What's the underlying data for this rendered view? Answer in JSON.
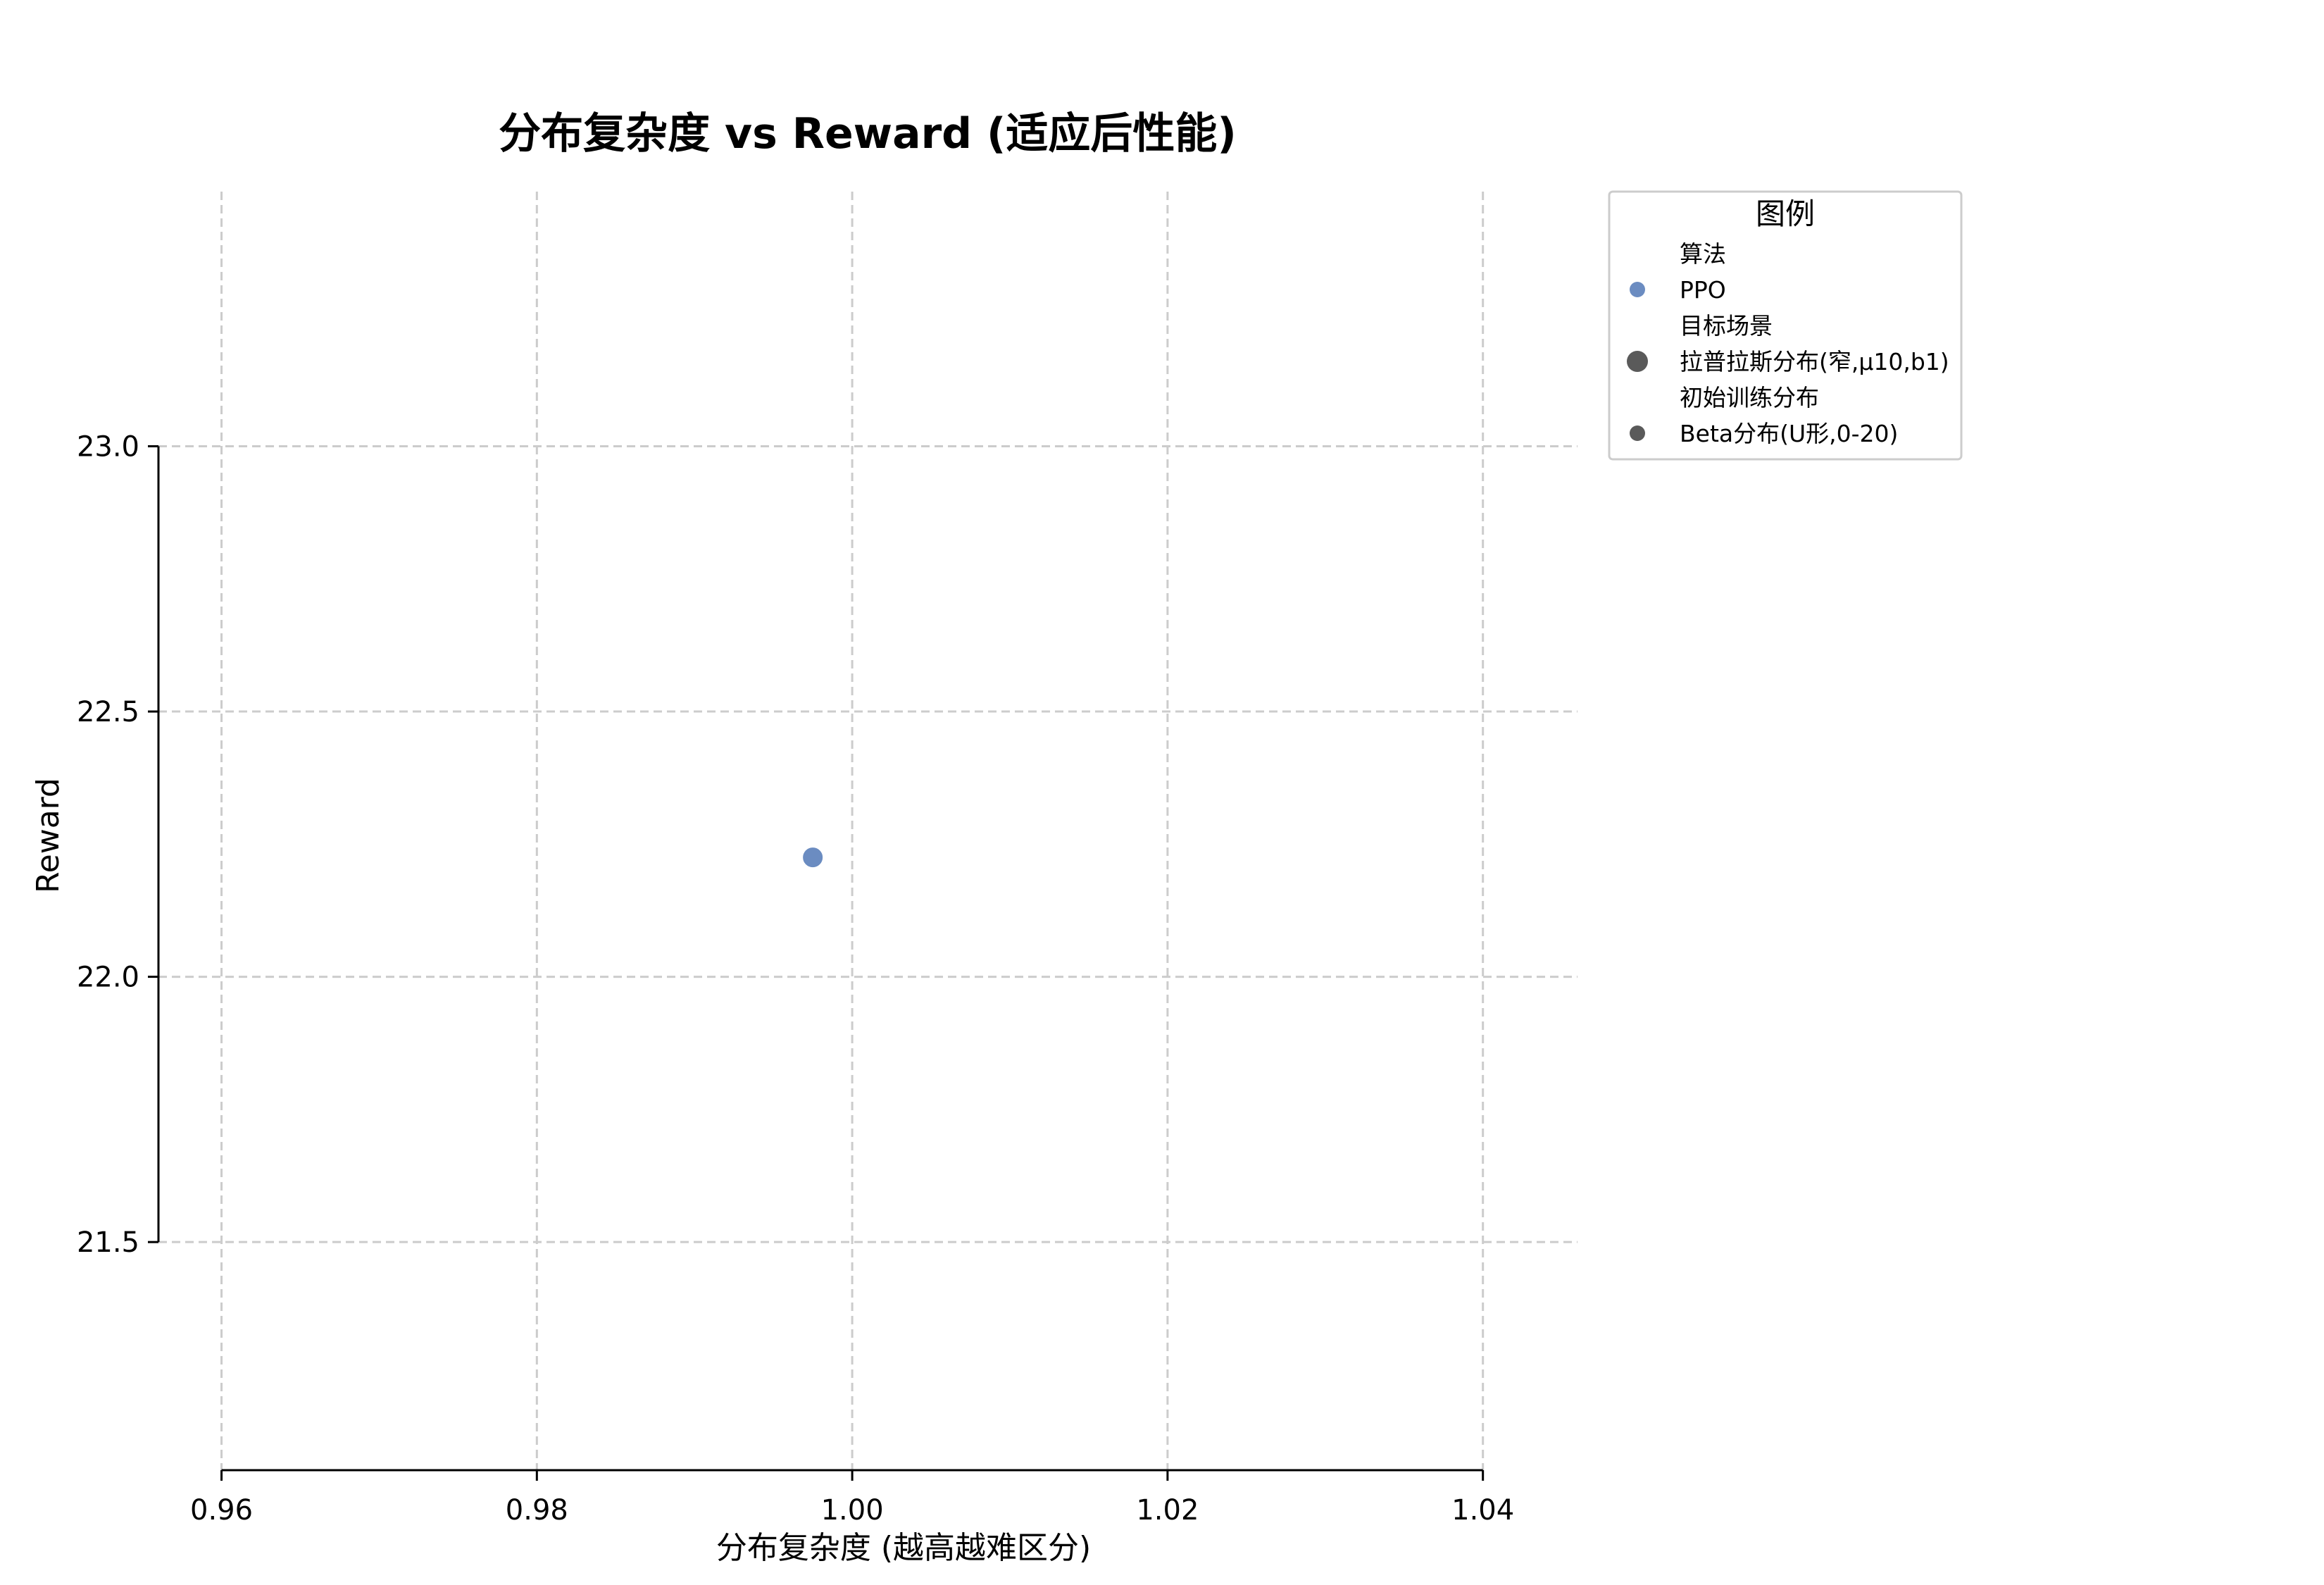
{
  "chart_data": {
    "type": "scatter",
    "title": "分布复杂度 vs Reward (适应后性能)",
    "xlabel": "分布复杂度 (越高越难区分)",
    "ylabel": "Reward",
    "xlim": [
      0.956,
      1.046
    ],
    "ylim": [
      21.07,
      23.48
    ],
    "xticks": [
      0.96,
      0.98,
      1.0,
      1.02,
      1.04
    ],
    "xtick_labels": [
      "0.96",
      "0.98",
      "1.00",
      "1.02",
      "1.04"
    ],
    "yticks": [
      21.5,
      22.0,
      22.5,
      23.0
    ],
    "ytick_labels": [
      "21.5",
      "22.0",
      "22.5",
      "23.0"
    ],
    "grid": true,
    "legend_position": "outside-top-right",
    "points": [
      {
        "x": 0.9975,
        "y": 22.225,
        "algorithm": "PPO",
        "target_scene": "拉普拉斯分布(窄,μ10,b1)",
        "initial_distribution": "Beta分布(U形,0-20)",
        "color": "#6b8cc1"
      }
    ],
    "legend": {
      "title": "图例",
      "entries": [
        {
          "label": "算法",
          "kind": "header"
        },
        {
          "label": "PPO",
          "kind": "marker",
          "color": "#6b8cc1",
          "size": "small"
        },
        {
          "label": "目标场景",
          "kind": "header"
        },
        {
          "label": "拉普拉斯分布(窄,μ10,b1)",
          "kind": "marker",
          "color": "#5a5a5a",
          "size": "large"
        },
        {
          "label": "初始训练分布",
          "kind": "header"
        },
        {
          "label": "Beta分布(U形,0-20)",
          "kind": "marker",
          "color": "#5a5a5a",
          "size": "small"
        }
      ]
    }
  }
}
